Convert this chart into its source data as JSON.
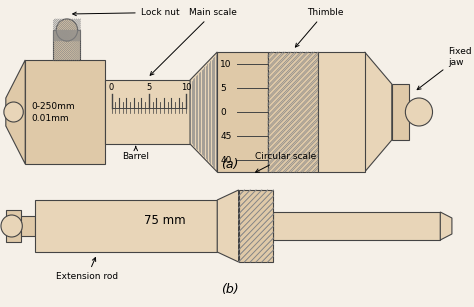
{
  "bg_color": "#f5f0e8",
  "tan_fill": "#dfc9a8",
  "tan_light": "#e8d5b8",
  "tan_dark": "#c8a87a",
  "hatch_color": "#888888",
  "outline_color": "#444444",
  "text_color": "#000000",
  "label_fontsize": 6.5,
  "part_a_label": "(a)",
  "part_b_label": "(b)",
  "circular_scale_labels": [
    "10",
    "5",
    "0",
    "45",
    "40"
  ],
  "spec_text": "0-250mm\n0.01mm"
}
